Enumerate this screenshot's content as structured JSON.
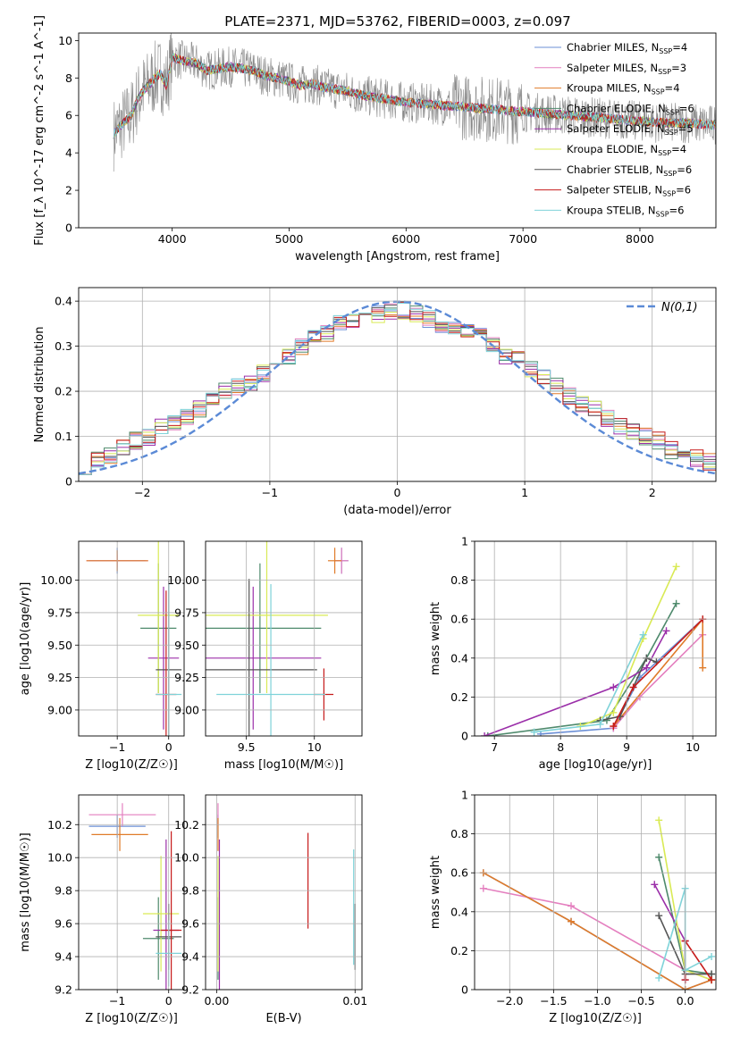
{
  "figure": {
    "title": "PLATE=2371, MJD=53762, FIBERID=0003, z=0.097"
  },
  "models": [
    {
      "name": "Chabrier MILES",
      "nssp": "4",
      "color": "#6b8fd6"
    },
    {
      "name": "Salpeter MILES",
      "nssp": "3",
      "color": "#e47fbf"
    },
    {
      "name": "Kroupa MILES",
      "nssp": "4",
      "color": "#e07b29"
    },
    {
      "name": "Chabrier ELODIE",
      "nssp": "6",
      "color": "#4e8a6c"
    },
    {
      "name": "Salpeter ELODIE",
      "nssp": "5",
      "color": "#9b2fa9"
    },
    {
      "name": "Kroupa ELODIE",
      "nssp": "4",
      "color": "#d9ea55"
    },
    {
      "name": "Chabrier STELIB",
      "nssp": "6",
      "color": "#555555"
    },
    {
      "name": "Salpeter STELIB",
      "nssp": "6",
      "color": "#c61b1b"
    },
    {
      "name": "Kroupa STELIB",
      "nssp": "6",
      "color": "#7fd3d9"
    }
  ],
  "chart_data": [
    {
      "id": "spectrum",
      "type": "line",
      "xlabel": "wavelength [Angstrom, rest frame]",
      "ylabel": "Flux [f_λ 10^-17 erg cm^-2 s^-1 A^-1]",
      "xlim": [
        3200,
        8650
      ],
      "ylim": [
        0,
        10.4
      ],
      "xticks": [
        4000,
        5000,
        6000,
        7000,
        8000
      ],
      "yticks": [
        0,
        2,
        4,
        6,
        8,
        10
      ],
      "grid": false,
      "legend": "top-right",
      "data_color": "#888888",
      "data_points": [
        [
          3500,
          5.0
        ],
        [
          3550,
          5.4
        ],
        [
          3600,
          5.7
        ],
        [
          3650,
          6.0
        ],
        [
          3700,
          6.8
        ],
        [
          3750,
          7.3
        ],
        [
          3800,
          7.6
        ],
        [
          3850,
          8.0
        ],
        [
          3900,
          8.2
        ],
        [
          3950,
          7.6
        ],
        [
          4000,
          9.1
        ],
        [
          4100,
          8.9
        ],
        [
          4200,
          8.8
        ],
        [
          4300,
          8.4
        ],
        [
          4400,
          8.5
        ],
        [
          4500,
          8.6
        ],
        [
          4600,
          8.5
        ],
        [
          4700,
          8.4
        ],
        [
          4800,
          8.1
        ],
        [
          4900,
          8.0
        ],
        [
          5000,
          7.8
        ],
        [
          5100,
          7.6
        ],
        [
          5200,
          7.7
        ],
        [
          5300,
          7.5
        ],
        [
          5400,
          7.4
        ],
        [
          5500,
          7.3
        ],
        [
          5600,
          7.1
        ],
        [
          5700,
          7.0
        ],
        [
          5800,
          6.9
        ],
        [
          5900,
          6.8
        ],
        [
          6000,
          6.7
        ],
        [
          6200,
          6.6
        ],
        [
          6400,
          6.5
        ],
        [
          6600,
          6.4
        ],
        [
          6800,
          6.3
        ],
        [
          7000,
          6.2
        ],
        [
          7200,
          6.1
        ],
        [
          7400,
          6.0
        ],
        [
          7600,
          5.9
        ],
        [
          7800,
          5.8
        ],
        [
          8000,
          5.7
        ],
        [
          8200,
          5.6
        ],
        [
          8400,
          5.6
        ],
        [
          8600,
          5.5
        ]
      ]
    },
    {
      "id": "residual-hist",
      "type": "line",
      "xlabel": "(data-model)/error",
      "ylabel": "Normed distribution",
      "xlim": [
        -2.5,
        2.5
      ],
      "ylim": [
        0,
        0.43
      ],
      "xticks": [
        -2,
        -1,
        0,
        1,
        2
      ],
      "yticks": [
        0.0,
        0.1,
        0.2,
        0.3,
        0.4
      ],
      "grid": true,
      "legend": "top-right",
      "normal_curve": {
        "label": "N(0,1)",
        "color": "#5b8ad6",
        "mu": 0,
        "sigma": 1
      },
      "bin_centers": [
        -2.45,
        -2.35,
        -2.25,
        -2.15,
        -2.05,
        -1.95,
        -1.85,
        -1.75,
        -1.65,
        -1.55,
        -1.45,
        -1.35,
        -1.25,
        -1.15,
        -1.05,
        -0.95,
        -0.85,
        -0.75,
        -0.65,
        -0.55,
        -0.45,
        -0.35,
        -0.25,
        -0.15,
        -0.05,
        0.05,
        0.15,
        0.25,
        0.35,
        0.45,
        0.55,
        0.65,
        0.75,
        0.85,
        0.95,
        1.05,
        1.15,
        1.25,
        1.35,
        1.45,
        1.55,
        1.65,
        1.75,
        1.85,
        1.95,
        2.05,
        2.15,
        2.25,
        2.35,
        2.45
      ],
      "base_values": [
        0.035,
        0.045,
        0.06,
        0.075,
        0.09,
        0.1,
        0.12,
        0.13,
        0.14,
        0.16,
        0.18,
        0.2,
        0.21,
        0.22,
        0.24,
        0.26,
        0.28,
        0.3,
        0.32,
        0.33,
        0.35,
        0.36,
        0.37,
        0.37,
        0.38,
        0.38,
        0.37,
        0.36,
        0.35,
        0.34,
        0.33,
        0.32,
        0.3,
        0.28,
        0.27,
        0.25,
        0.23,
        0.21,
        0.19,
        0.17,
        0.16,
        0.14,
        0.12,
        0.11,
        0.1,
        0.09,
        0.07,
        0.06,
        0.05,
        0.045
      ]
    },
    {
      "id": "age-vs-Z",
      "type": "scatter",
      "xlabel": "Z [log10(Z/Z☉)]",
      "ylabel": "age [log10(age/yr)]",
      "xlim": [
        -1.75,
        0.3
      ],
      "ylim": [
        8.8,
        10.3
      ],
      "xticks": [
        -1,
        0
      ],
      "yticks": [
        9.0,
        9.25,
        9.5,
        9.75,
        10.0
      ],
      "ytick_labels": [
        "9.00",
        "9.25",
        "9.50",
        "9.75",
        "10.00"
      ],
      "grid": true,
      "points": [
        {
          "model": 0,
          "x": -1.0,
          "y": 10.15,
          "xerr": 0.55,
          "yerr": 0.1
        },
        {
          "model": 1,
          "x": -1.0,
          "y": 10.15,
          "xerr": 0.6,
          "yerr": 0.05
        },
        {
          "model": 2,
          "x": -1.0,
          "y": 10.15,
          "xerr": 0.6,
          "yerr": 0.08
        },
        {
          "model": 3,
          "x": -0.2,
          "y": 9.63,
          "xerr": 0.35,
          "yerr": 0.5
        },
        {
          "model": 4,
          "x": -0.1,
          "y": 9.4,
          "xerr": 0.3,
          "yerr": 0.55
        },
        {
          "model": 5,
          "x": -0.2,
          "y": 9.73,
          "xerr": 0.4,
          "yerr": 0.6
        },
        {
          "model": 6,
          "x": 0.0,
          "y": 9.31,
          "xerr": 0.25,
          "yerr": 0.7
        },
        {
          "model": 7,
          "x": -0.05,
          "y": 9.12,
          "xerr": 0.2,
          "yerr": 0.8
        },
        {
          "model": 8,
          "x": 0.0,
          "y": 9.12,
          "xerr": 0.25,
          "yerr": 0.85
        }
      ]
    },
    {
      "id": "age-vs-mass",
      "type": "scatter",
      "xlabel": "mass [log10(M/M☉)]",
      "ylabel": "",
      "xlim": [
        9.2,
        10.35
      ],
      "ylim": [
        8.8,
        10.3
      ],
      "xticks": [
        9.5,
        10.0
      ],
      "yticks": [
        9.0,
        9.25,
        9.5,
        9.75,
        10.0
      ],
      "ytick_labels": [
        "9.00",
        "9.25",
        "9.50",
        "9.75",
        "10.00"
      ],
      "grid": true,
      "points": [
        {
          "model": 0,
          "x": 10.2,
          "y": 10.15,
          "xerr": 0.05,
          "yerr": 0.1
        },
        {
          "model": 1,
          "x": 10.2,
          "y": 10.15,
          "xerr": 0.05,
          "yerr": 0.1
        },
        {
          "model": 2,
          "x": 10.15,
          "y": 10.15,
          "xerr": 0.05,
          "yerr": 0.1
        },
        {
          "model": 3,
          "x": 9.6,
          "y": 9.63,
          "xerr": 0.45,
          "yerr": 0.5
        },
        {
          "model": 4,
          "x": 9.55,
          "y": 9.4,
          "xerr": 0.5,
          "yerr": 0.55
        },
        {
          "model": 5,
          "x": 9.65,
          "y": 9.73,
          "xerr": 0.45,
          "yerr": 0.6
        },
        {
          "model": 6,
          "x": 9.52,
          "y": 9.31,
          "xerr": 0.5,
          "yerr": 0.7
        },
        {
          "model": 7,
          "x": 10.07,
          "y": 9.12,
          "xerr": 0.07,
          "yerr": 0.2
        },
        {
          "model": 8,
          "x": 9.68,
          "y": 9.12,
          "xerr": 0.4,
          "yerr": 0.85
        }
      ]
    },
    {
      "id": "weight-vs-age",
      "type": "line",
      "xlabel": "age [log10(age/yr)]",
      "ylabel": "mass weight",
      "xlim": [
        6.7,
        10.35
      ],
      "ylim": [
        0,
        1.0
      ],
      "xticks": [
        7,
        8,
        9,
        10
      ],
      "yticks": [
        0.0,
        0.2,
        0.4,
        0.6,
        0.8,
        1.0
      ],
      "grid": true,
      "series": [
        {
          "model": 0,
          "points": [
            [
              7.7,
              0.01
            ],
            [
              8.8,
              0.04
            ],
            [
              9.2,
              0.3
            ],
            [
              10.15,
              0.6
            ]
          ]
        },
        {
          "model": 1,
          "points": [
            [
              8.8,
              0.04
            ],
            [
              9.2,
              0.2
            ],
            [
              10.15,
              0.52
            ]
          ]
        },
        {
          "model": 2,
          "points": [
            [
              8.8,
              0.05
            ],
            [
              10.15,
              0.6
            ],
            [
              10.15,
              0.35
            ]
          ]
        },
        {
          "model": 3,
          "points": [
            [
              6.9,
              0.0
            ],
            [
              8.7,
              0.08
            ],
            [
              9.3,
              0.4
            ],
            [
              9.75,
              0.68
            ]
          ]
        },
        {
          "model": 4,
          "points": [
            [
              6.85,
              0.0
            ],
            [
              8.8,
              0.25
            ],
            [
              9.3,
              0.35
            ],
            [
              9.6,
              0.54
            ]
          ]
        },
        {
          "model": 5,
          "points": [
            [
              8.3,
              0.05
            ],
            [
              8.8,
              0.12
            ],
            [
              9.25,
              0.5
            ],
            [
              9.75,
              0.87
            ]
          ]
        },
        {
          "model": 6,
          "points": [
            [
              8.6,
              0.08
            ],
            [
              8.9,
              0.1
            ],
            [
              9.3,
              0.4
            ],
            [
              9.45,
              0.38
            ]
          ]
        },
        {
          "model": 7,
          "points": [
            [
              8.8,
              0.05
            ],
            [
              9.1,
              0.25
            ],
            [
              10.15,
              0.6
            ]
          ]
        },
        {
          "model": 8,
          "points": [
            [
              7.6,
              0.02
            ],
            [
              8.6,
              0.06
            ],
            [
              9.25,
              0.52
            ]
          ]
        }
      ]
    },
    {
      "id": "mass-vs-Z",
      "type": "scatter",
      "xlabel": "Z [log10(Z/Z☉)]",
      "ylabel": "mass [log10(M/M☉)]",
      "xlim": [
        -1.75,
        0.3
      ],
      "ylim": [
        9.2,
        10.38
      ],
      "xticks": [
        -1,
        0
      ],
      "yticks": [
        9.2,
        9.4,
        9.6,
        9.8,
        10.0,
        10.2
      ],
      "ytick_labels": [
        "9.2",
        "9.4",
        "9.6",
        "9.8",
        "10.0",
        "10.2"
      ],
      "grid": true,
      "points": [
        {
          "model": 0,
          "x": -1.0,
          "y": 10.19,
          "xerr": 0.55,
          "yerr": 0.07
        },
        {
          "model": 1,
          "x": -0.9,
          "y": 10.26,
          "xerr": 0.65,
          "yerr": 0.07
        },
        {
          "model": 2,
          "x": -0.95,
          "y": 10.14,
          "xerr": 0.55,
          "yerr": 0.1
        },
        {
          "model": 3,
          "x": -0.2,
          "y": 9.51,
          "xerr": 0.3,
          "yerr": 0.25
        },
        {
          "model": 4,
          "x": -0.05,
          "y": 9.56,
          "xerr": 0.25,
          "yerr": 0.55
        },
        {
          "model": 5,
          "x": -0.15,
          "y": 9.66,
          "xerr": 0.35,
          "yerr": 0.35
        },
        {
          "model": 6,
          "x": 0.0,
          "y": 9.52,
          "xerr": 0.25,
          "yerr": 0.2
        },
        {
          "model": 7,
          "x": 0.05,
          "y": 9.56,
          "xerr": 0.2,
          "yerr": 0.6
        },
        {
          "model": 8,
          "x": 0.0,
          "y": 9.42,
          "xerr": 0.25,
          "yerr": 0.2
        }
      ]
    },
    {
      "id": "mass-vs-ebv",
      "type": "scatter",
      "xlabel": "E(B-V)",
      "ylabel": "",
      "xlim": [
        -0.0008,
        0.0105
      ],
      "ylim": [
        9.2,
        10.38
      ],
      "xticks": [
        0.0,
        0.01
      ],
      "xtick_labels": [
        "0.00",
        "0.01"
      ],
      "yticks": [
        9.2,
        9.4,
        9.6,
        9.8,
        10.0,
        10.2
      ],
      "ytick_labels": [
        "9.2",
        "9.4",
        "9.6",
        "9.8",
        "10.0",
        "10.2"
      ],
      "grid": true,
      "points": [
        {
          "model": 0,
          "x": 0.0001,
          "y": 10.19,
          "xerr": 0,
          "yerr": 0.07
        },
        {
          "model": 1,
          "x": 0.0001,
          "y": 10.26,
          "xerr": 0,
          "yerr": 0.07
        },
        {
          "model": 2,
          "x": 0.0001,
          "y": 10.14,
          "xerr": 0,
          "yerr": 0.1
        },
        {
          "model": 3,
          "x": 0.0001,
          "y": 9.51,
          "xerr": 0,
          "yerr": 0.25
        },
        {
          "model": 4,
          "x": 0.0002,
          "y": 9.56,
          "xerr": 0,
          "yerr": 0.55
        },
        {
          "model": 5,
          "x": 0.0001,
          "y": 9.66,
          "xerr": 0,
          "yerr": 0.35
        },
        {
          "model": 6,
          "x": 0.01,
          "y": 9.52,
          "xerr": 0,
          "yerr": 0.2
        },
        {
          "model": 7,
          "x": 0.0066,
          "y": 9.86,
          "xerr": 0,
          "yerr": 0.29
        },
        {
          "model": 8,
          "x": 0.0099,
          "y": 9.7,
          "xerr": 0,
          "yerr": 0.35
        }
      ]
    },
    {
      "id": "weight-vs-Z",
      "type": "line",
      "xlabel": "Z [log10(Z/Z☉)]",
      "ylabel": "mass weight",
      "xlim": [
        -2.4,
        0.35
      ],
      "ylim": [
        0,
        1.0
      ],
      "xticks": [
        -2.0,
        -1.5,
        -1.0,
        -0.5,
        0.0
      ],
      "xtick_labels": [
        "−2.0",
        "−1.5",
        "−1.0",
        "−0.5",
        "0.0"
      ],
      "yticks": [
        0.0,
        0.2,
        0.4,
        0.6,
        0.8,
        1.0
      ],
      "grid": true,
      "series": [
        {
          "model": 0,
          "points": [
            [
              -2.3,
              0.6
            ],
            [
              -1.3,
              0.35
            ],
            [
              0.0,
              0.0
            ],
            [
              0.3,
              0.05
            ]
          ]
        },
        {
          "model": 1,
          "points": [
            [
              -2.3,
              0.52
            ],
            [
              -1.3,
              0.43
            ],
            [
              0.0,
              0.1
            ],
            [
              0.3,
              0.05
            ]
          ]
        },
        {
          "model": 2,
          "points": [
            [
              -2.3,
              0.6
            ],
            [
              -1.3,
              0.35
            ],
            [
              0.0,
              0.0
            ],
            [
              0.3,
              0.05
            ]
          ]
        },
        {
          "model": 3,
          "points": [
            [
              -0.3,
              0.68
            ],
            [
              0.0,
              0.1
            ],
            [
              0.3,
              0.08
            ]
          ]
        },
        {
          "model": 4,
          "points": [
            [
              -0.35,
              0.54
            ],
            [
              0.0,
              0.25
            ],
            [
              0.0,
              0.05
            ]
          ]
        },
        {
          "model": 5,
          "points": [
            [
              -0.3,
              0.87
            ],
            [
              0.0,
              0.1
            ],
            [
              0.3,
              0.05
            ]
          ]
        },
        {
          "model": 6,
          "points": [
            [
              -0.3,
              0.38
            ],
            [
              0.0,
              0.08
            ],
            [
              0.3,
              0.08
            ]
          ]
        },
        {
          "model": 7,
          "points": [
            [
              0.0,
              0.05
            ],
            [
              0.0,
              0.25
            ],
            [
              0.3,
              0.05
            ]
          ]
        },
        {
          "model": 8,
          "points": [
            [
              -0.3,
              0.06
            ],
            [
              0.0,
              0.52
            ],
            [
              0.0,
              0.1
            ],
            [
              0.3,
              0.17
            ]
          ]
        }
      ]
    }
  ]
}
